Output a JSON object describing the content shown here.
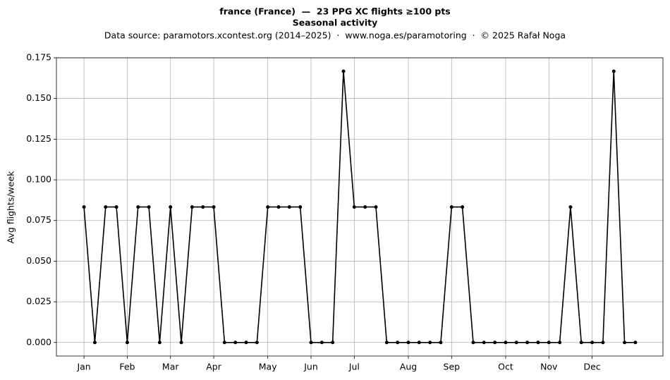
{
  "chart_data": {
    "type": "line",
    "title": "france (France)  —  23 PPG XC flights ≥100 pts",
    "subtitle": "Seasonal activity",
    "source": "Data source: paramotors.xcontest.org (2014–2025)  ·  www.noga.es/paramotoring  ·  © 2025 Rafał Noga",
    "y_label": "Avg flights/week",
    "color": "#000000",
    "grid": true,
    "x": [
      1,
      2,
      3,
      4,
      5,
      6,
      7,
      8,
      9,
      10,
      11,
      12,
      13,
      14,
      15,
      16,
      17,
      18,
      19,
      20,
      21,
      22,
      23,
      24,
      25,
      26,
      27,
      28,
      29,
      30,
      31,
      32,
      33,
      34,
      35,
      36,
      37,
      38,
      39,
      40,
      41,
      42,
      43,
      44,
      45,
      46,
      47,
      48,
      49,
      50,
      51,
      52
    ],
    "values": [
      0.0833,
      0,
      0.0833,
      0.0833,
      0,
      0.0833,
      0.0833,
      0,
      0.0833,
      0,
      0.0833,
      0.0833,
      0.0833,
      0,
      0,
      0,
      0,
      0.0833,
      0.0833,
      0.0833,
      0.0833,
      0,
      0,
      0,
      0.1667,
      0.0833,
      0.0833,
      0.0833,
      0,
      0,
      0,
      0,
      0,
      0,
      0.0833,
      0.0833,
      0,
      0,
      0,
      0,
      0,
      0,
      0,
      0,
      0,
      0.0833,
      0,
      0,
      0,
      0.1667,
      0,
      0
    ],
    "xlim": [
      -1.55,
      54.55
    ],
    "xticks": [
      {
        "value": 1,
        "label": "Jan"
      },
      {
        "value": 5,
        "label": "Feb"
      },
      {
        "value": 9,
        "label": "Mar"
      },
      {
        "value": 13,
        "label": "Apr"
      },
      {
        "value": 18,
        "label": "May"
      },
      {
        "value": 22,
        "label": "Jun"
      },
      {
        "value": 26,
        "label": "Jul"
      },
      {
        "value": 31,
        "label": "Aug"
      },
      {
        "value": 35,
        "label": "Sep"
      },
      {
        "value": 40,
        "label": "Oct"
      },
      {
        "value": 44,
        "label": "Nov"
      },
      {
        "value": 48,
        "label": "Dec"
      }
    ],
    "ylim": [
      -0.00833,
      0.175
    ],
    "yticks": [
      {
        "value": 0,
        "label": "0.000"
      },
      {
        "value": 0.025,
        "label": "0.025"
      },
      {
        "value": 0.05,
        "label": "0.050"
      },
      {
        "value": 0.075,
        "label": "0.075"
      },
      {
        "value": 0.1,
        "label": "0.100"
      },
      {
        "value": 0.125,
        "label": "0.125"
      },
      {
        "value": 0.15,
        "label": "0.150"
      },
      {
        "value": 0.175,
        "label": "0.175"
      }
    ]
  }
}
